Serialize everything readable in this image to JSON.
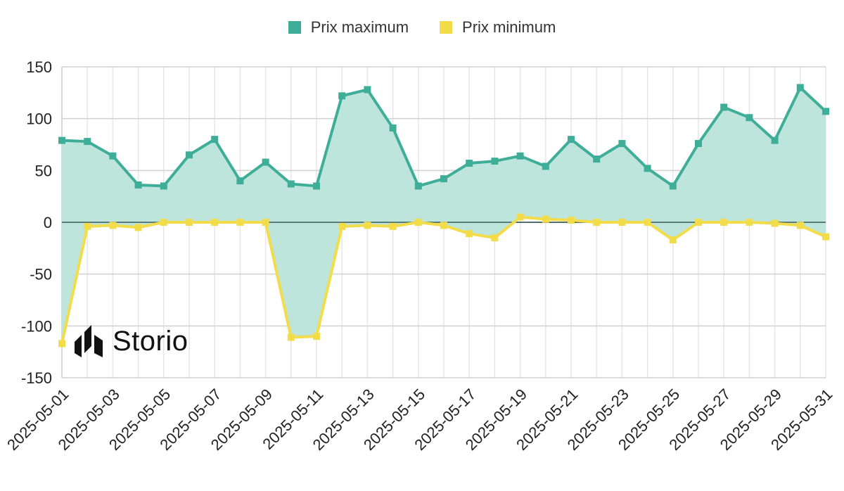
{
  "chart_data": {
    "type": "area",
    "title": "",
    "xlabel": "",
    "ylabel": "",
    "ylim": [
      -150,
      150
    ],
    "yticks": [
      -150,
      -100,
      -50,
      0,
      50,
      100,
      150
    ],
    "x": [
      "2025-05-01",
      "2025-05-02",
      "2025-05-03",
      "2025-05-04",
      "2025-05-05",
      "2025-05-06",
      "2025-05-07",
      "2025-05-08",
      "2025-05-09",
      "2025-05-10",
      "2025-05-11",
      "2025-05-12",
      "2025-05-13",
      "2025-05-14",
      "2025-05-15",
      "2025-05-16",
      "2025-05-17",
      "2025-05-18",
      "2025-05-19",
      "2025-05-20",
      "2025-05-21",
      "2025-05-22",
      "2025-05-23",
      "2025-05-24",
      "2025-05-25",
      "2025-05-26",
      "2025-05-27",
      "2025-05-28",
      "2025-05-29",
      "2025-05-30",
      "2025-05-31"
    ],
    "xtick_labels": [
      "2025-05-01",
      "2025-05-03",
      "2025-05-05",
      "2025-05-07",
      "2025-05-09",
      "2025-05-11",
      "2025-05-13",
      "2025-05-15",
      "2025-05-17",
      "2025-05-19",
      "2025-05-21",
      "2025-05-23",
      "2025-05-25",
      "2025-05-27",
      "2025-05-29",
      "2025-05-31"
    ],
    "grid": true,
    "legend_position": "top-center",
    "series": [
      {
        "name": "Prix maximum",
        "color": "#3fae98",
        "fill": "#b9e4da",
        "values": [
          79,
          78,
          64,
          36,
          35,
          65,
          80,
          40,
          58,
          37,
          35,
          122,
          128,
          91,
          35,
          42,
          57,
          59,
          64,
          54,
          80,
          61,
          76,
          52,
          35,
          76,
          111,
          101,
          79,
          130,
          107
        ]
      },
      {
        "name": "Prix minimum",
        "color": "#f2dc4a",
        "values": [
          -117,
          -4,
          -3,
          -5,
          0,
          0,
          0,
          0,
          0,
          -111,
          -110,
          -4,
          -3,
          -4,
          0,
          -3,
          -11,
          -15,
          5,
          3,
          2,
          0,
          0,
          0,
          -17,
          0,
          0,
          0,
          -1,
          -3,
          -14
        ]
      }
    ]
  },
  "logo": {
    "text": "Storio",
    "icon": "storio-logo-icon"
  }
}
